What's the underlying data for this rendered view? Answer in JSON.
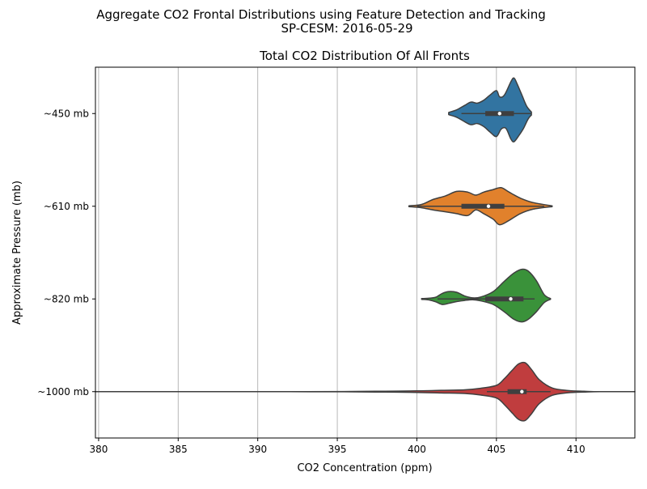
{
  "figure": {
    "suptitle_line1": "Aggregate CO2 Frontal Distributions using Feature Detection and Tracking",
    "suptitle_line2": "SP-CESM: 2016-05-29"
  },
  "chart_data": {
    "type": "violin",
    "orientation": "horizontal",
    "title": "Total CO2 Distribution Of All Fronts",
    "xlabel": "CO2 Concentration (ppm)",
    "ylabel": "Approximate Pressure (mb)",
    "xlim": [
      379.8,
      413.7
    ],
    "xticks": [
      380,
      385,
      390,
      395,
      400,
      405,
      410
    ],
    "grid": "vertical",
    "categories": [
      "~450 mb",
      "~610 mb",
      "~820 mb",
      "~1000 mb"
    ],
    "series": [
      {
        "name": "~450 mb",
        "color": "#3274a1",
        "min": 402.0,
        "q1": 404.3,
        "median": 405.2,
        "q3": 406.1,
        "max": 407.2,
        "whisker_low": 402.8,
        "whisker_high": 407.2,
        "outline": [
          [
            402.0,
            0.03
          ],
          [
            402.5,
            0.1
          ],
          [
            403.0,
            0.22
          ],
          [
            403.4,
            0.31
          ],
          [
            403.8,
            0.28
          ],
          [
            404.2,
            0.36
          ],
          [
            404.6,
            0.5
          ],
          [
            405.0,
            0.62
          ],
          [
            405.2,
            0.45
          ],
          [
            405.5,
            0.5
          ],
          [
            405.9,
            0.85
          ],
          [
            406.1,
            0.96
          ],
          [
            406.3,
            0.8
          ],
          [
            406.6,
            0.5
          ],
          [
            406.9,
            0.2
          ],
          [
            407.2,
            0.04
          ]
        ],
        "outline_lower": [
          [
            402.0,
            0.03
          ],
          [
            402.5,
            0.1
          ],
          [
            403.0,
            0.22
          ],
          [
            403.4,
            0.3
          ],
          [
            403.8,
            0.27
          ],
          [
            404.2,
            0.35
          ],
          [
            404.6,
            0.5
          ],
          [
            405.0,
            0.62
          ],
          [
            405.3,
            0.42
          ],
          [
            405.6,
            0.4
          ],
          [
            405.9,
            0.68
          ],
          [
            406.1,
            0.76
          ],
          [
            406.4,
            0.6
          ],
          [
            406.7,
            0.4
          ],
          [
            407.0,
            0.14
          ],
          [
            407.2,
            0.04
          ]
        ]
      },
      {
        "name": "~610 mb",
        "color": "#e1812c",
        "min": 399.5,
        "q1": 402.8,
        "median": 404.5,
        "q3": 405.5,
        "max": 408.5,
        "whisker_low": 400.0,
        "whisker_high": 408.0,
        "outline": [
          [
            399.5,
            0.01
          ],
          [
            400.3,
            0.05
          ],
          [
            401.0,
            0.18
          ],
          [
            401.8,
            0.28
          ],
          [
            402.5,
            0.4
          ],
          [
            403.2,
            0.38
          ],
          [
            403.7,
            0.3
          ],
          [
            404.2,
            0.38
          ],
          [
            404.8,
            0.45
          ],
          [
            405.3,
            0.5
          ],
          [
            405.8,
            0.38
          ],
          [
            406.5,
            0.22
          ],
          [
            407.3,
            0.1
          ],
          [
            408.5,
            0.01
          ]
        ],
        "outline_lower": [
          [
            399.5,
            0.01
          ],
          [
            400.3,
            0.04
          ],
          [
            401.0,
            0.1
          ],
          [
            401.8,
            0.15
          ],
          [
            402.5,
            0.2
          ],
          [
            403.2,
            0.25
          ],
          [
            403.7,
            0.1
          ],
          [
            404.2,
            0.2
          ],
          [
            404.8,
            0.35
          ],
          [
            405.2,
            0.5
          ],
          [
            405.8,
            0.38
          ],
          [
            406.5,
            0.2
          ],
          [
            407.3,
            0.08
          ],
          [
            408.5,
            0.01
          ]
        ]
      },
      {
        "name": "~820 mb",
        "color": "#3a923a",
        "min": 400.3,
        "q1": 404.3,
        "median": 405.9,
        "q3": 406.7,
        "max": 408.4,
        "whisker_low": 401.3,
        "whisker_high": 407.4,
        "outline": [
          [
            400.3,
            0.01
          ],
          [
            400.8,
            0.02
          ],
          [
            401.2,
            0.05
          ],
          [
            401.6,
            0.15
          ],
          [
            402.0,
            0.2
          ],
          [
            402.5,
            0.18
          ],
          [
            403.0,
            0.08
          ],
          [
            403.5,
            0.03
          ],
          [
            404.0,
            0.05
          ],
          [
            404.8,
            0.2
          ],
          [
            405.5,
            0.48
          ],
          [
            406.1,
            0.7
          ],
          [
            406.6,
            0.8
          ],
          [
            407.0,
            0.75
          ],
          [
            407.5,
            0.5
          ],
          [
            408.0,
            0.12
          ],
          [
            408.4,
            0.01
          ]
        ],
        "outline_lower": [
          [
            400.3,
            0.01
          ],
          [
            400.8,
            0.03
          ],
          [
            401.2,
            0.08
          ],
          [
            401.6,
            0.15
          ],
          [
            402.0,
            0.12
          ],
          [
            402.5,
            0.07
          ],
          [
            403.0,
            0.04
          ],
          [
            403.5,
            0.02
          ],
          [
            404.0,
            0.05
          ],
          [
            404.8,
            0.15
          ],
          [
            405.5,
            0.35
          ],
          [
            406.1,
            0.55
          ],
          [
            406.6,
            0.62
          ],
          [
            407.0,
            0.55
          ],
          [
            407.5,
            0.35
          ],
          [
            408.0,
            0.1
          ],
          [
            408.4,
            0.01
          ]
        ]
      },
      {
        "name": "~1000 mb",
        "color": "#c03d3e",
        "min": 379.8,
        "q1": 405.7,
        "median": 406.6,
        "q3": 406.9,
        "max": 413.7,
        "whisker_low": 404.4,
        "whisker_high": 408.4,
        "outline": [
          [
            379.8,
            0.0
          ],
          [
            392.0,
            0.0
          ],
          [
            396.0,
            0.006
          ],
          [
            398.0,
            0.012
          ],
          [
            400.0,
            0.02
          ],
          [
            401.5,
            0.035
          ],
          [
            403.0,
            0.05
          ],
          [
            404.0,
            0.09
          ],
          [
            405.0,
            0.17
          ],
          [
            405.5,
            0.35
          ],
          [
            406.0,
            0.58
          ],
          [
            406.4,
            0.75
          ],
          [
            406.8,
            0.78
          ],
          [
            407.2,
            0.6
          ],
          [
            407.7,
            0.32
          ],
          [
            408.5,
            0.1
          ],
          [
            409.5,
            0.03
          ],
          [
            410.5,
            0.01
          ],
          [
            411.5,
            0.0
          ],
          [
            413.7,
            0.0
          ]
        ],
        "outline_lower": [
          [
            379.8,
            0.0
          ],
          [
            392.0,
            0.0
          ],
          [
            396.0,
            0.006
          ],
          [
            398.0,
            0.012
          ],
          [
            400.0,
            0.02
          ],
          [
            401.5,
            0.035
          ],
          [
            403.0,
            0.05
          ],
          [
            404.0,
            0.09
          ],
          [
            405.0,
            0.17
          ],
          [
            405.5,
            0.35
          ],
          [
            406.0,
            0.58
          ],
          [
            406.4,
            0.75
          ],
          [
            406.8,
            0.78
          ],
          [
            407.2,
            0.6
          ],
          [
            407.7,
            0.32
          ],
          [
            408.5,
            0.1
          ],
          [
            409.5,
            0.03
          ],
          [
            410.5,
            0.01
          ],
          [
            411.5,
            0.0
          ],
          [
            413.7,
            0.0
          ]
        ]
      }
    ]
  }
}
